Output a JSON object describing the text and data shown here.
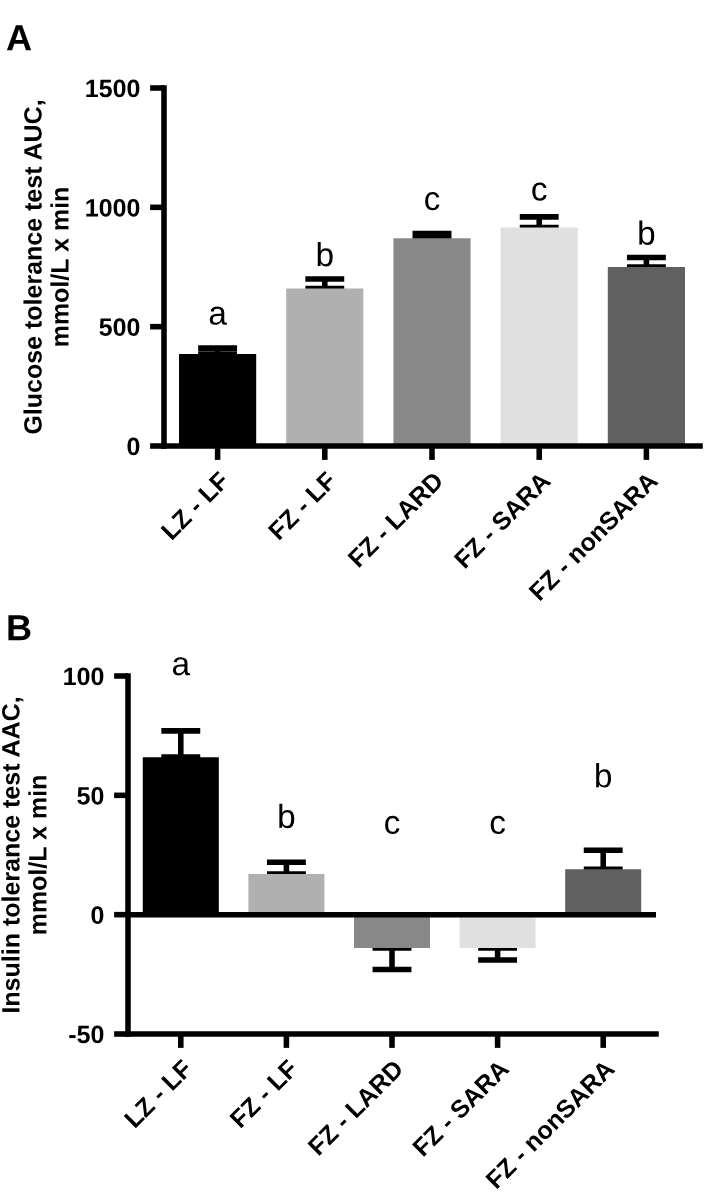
{
  "chart_data": [
    {
      "type": "bar",
      "title": "A",
      "ylabel": "Glucose tolerance test AUC,\nmmol/L x min",
      "categories": [
        "LZ - LF",
        "FZ - LF",
        "FZ - LARD",
        "FZ - SARA",
        "FZ - nonSARA"
      ],
      "values": [
        385,
        660,
        870,
        915,
        750
      ],
      "colors": [
        "#000000",
        "#b0b0b0",
        "#888888",
        "#e0e0e0",
        "#606060"
      ],
      "errors": [
        [
          385,
          410
        ],
        [
          660,
          700
        ],
        [
          870,
          890
        ],
        [
          915,
          960
        ],
        [
          750,
          790
        ]
      ],
      "ylim": [
        0,
        1500
      ],
      "yticks": [
        0,
        500,
        1000,
        1500
      ],
      "grid": false,
      "legend": false,
      "annotations": [
        "a",
        "b",
        "c",
        "c",
        "b"
      ]
    },
    {
      "type": "bar",
      "title": "B",
      "ylabel": "Insulin tolerance test AAC,\nmmol/L x min",
      "categories": [
        "LZ - LF",
        "FZ - LF",
        "FZ - LARD",
        "FZ - SARA",
        "FZ - nonSARA"
      ],
      "values": [
        66,
        17,
        -14,
        -14,
        19
      ],
      "colors": [
        "#000000",
        "#b0b0b0",
        "#888888",
        "#e0e0e0",
        "#606060"
      ],
      "errors": [
        [
          66,
          77
        ],
        [
          17,
          22
        ],
        [
          -23,
          -14
        ],
        [
          -19,
          -14
        ],
        [
          19,
          27
        ]
      ],
      "ylim": [
        -50,
        100
      ],
      "yticks": [
        -50,
        0,
        50,
        100
      ],
      "grid": false,
      "legend": false,
      "ref_lines": [
        {
          "axis": "y",
          "value": 0
        }
      ],
      "annotations": [
        "a",
        "b",
        "c",
        "c",
        "b"
      ]
    }
  ]
}
